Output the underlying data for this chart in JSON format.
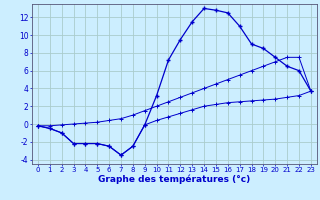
{
  "xlabel": "Graphe des températures (°c)",
  "background_color": "#cceeff",
  "grid_color": "#aacccc",
  "line_color": "#0000cc",
  "hours": [
    0,
    1,
    2,
    3,
    4,
    5,
    6,
    7,
    8,
    9,
    10,
    11,
    12,
    13,
    14,
    15,
    16,
    17,
    18,
    19,
    20,
    21,
    22,
    23
  ],
  "temp_actual": [
    -0.2,
    -0.5,
    -1.0,
    -2.2,
    -2.2,
    -2.2,
    -2.5,
    -3.5,
    -2.5,
    -0.1,
    3.2,
    7.2,
    9.5,
    11.5,
    13.0,
    12.8,
    12.5,
    11.0,
    9.0,
    8.5,
    7.5,
    6.5,
    6.0,
    3.7
  ],
  "temp_min": [
    -0.2,
    -0.5,
    -1.0,
    -2.2,
    -2.2,
    -2.2,
    -2.5,
    -3.5,
    -2.5,
    -0.1,
    0.4,
    0.8,
    1.2,
    1.6,
    2.0,
    2.2,
    2.4,
    2.5,
    2.6,
    2.7,
    2.8,
    3.0,
    3.2,
    3.7
  ],
  "temp_max": [
    -0.2,
    -0.2,
    -0.1,
    0.0,
    0.1,
    0.2,
    0.4,
    0.6,
    1.0,
    1.5,
    2.0,
    2.5,
    3.0,
    3.5,
    4.0,
    4.5,
    5.0,
    5.5,
    6.0,
    6.5,
    7.0,
    7.5,
    7.5,
    3.7
  ],
  "ylim": [
    -4.5,
    13.5
  ],
  "yticks": [
    -4,
    -2,
    0,
    2,
    4,
    6,
    8,
    10,
    12
  ],
  "xlim": [
    -0.5,
    23.5
  ],
  "xlabel_fontsize": 6.5,
  "tick_fontsize_x": 5.0,
  "tick_fontsize_y": 5.5
}
